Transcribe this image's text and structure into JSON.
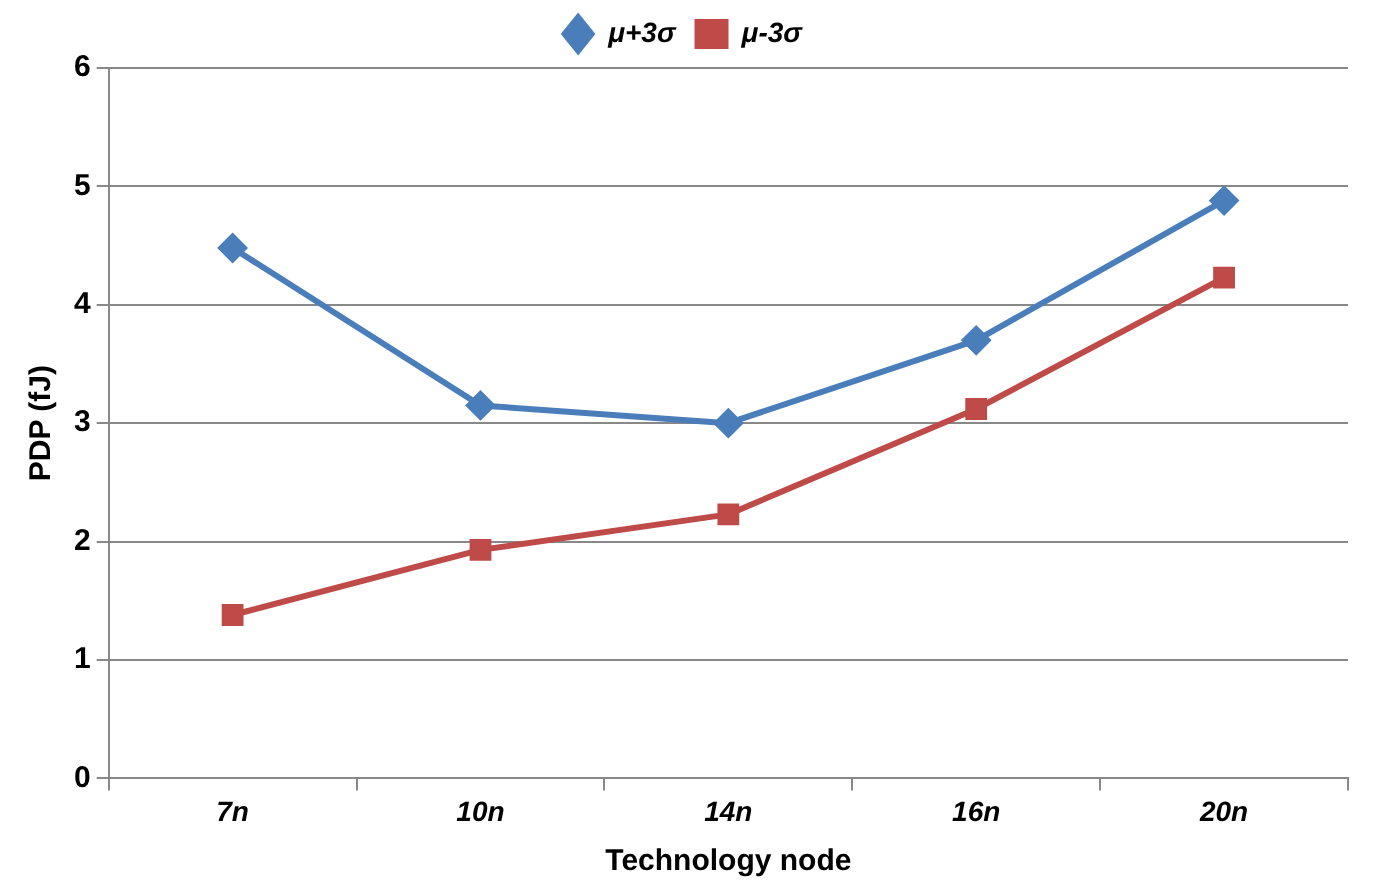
{
  "chart_data": {
    "type": "line",
    "xlabel": "Technology node",
    "ylabel": "PDP (fJ)",
    "categories": [
      "7n",
      "10n",
      "14n",
      "16n",
      "20n"
    ],
    "series": [
      {
        "name": "μ+3σ",
        "color": "#4a7ebb",
        "marker": "diamond",
        "values": [
          4.48,
          3.15,
          3.0,
          3.7,
          4.88
        ]
      },
      {
        "name": "μ-3σ",
        "color": "#be4b48",
        "marker": "square",
        "values": [
          1.38,
          1.93,
          2.23,
          3.12,
          4.23
        ]
      }
    ],
    "ylim": [
      0,
      6
    ],
    "yticks": [
      0,
      1,
      2,
      3,
      4,
      5,
      6
    ],
    "grid": "y",
    "legend": "top",
    "line_style": "solid"
  }
}
